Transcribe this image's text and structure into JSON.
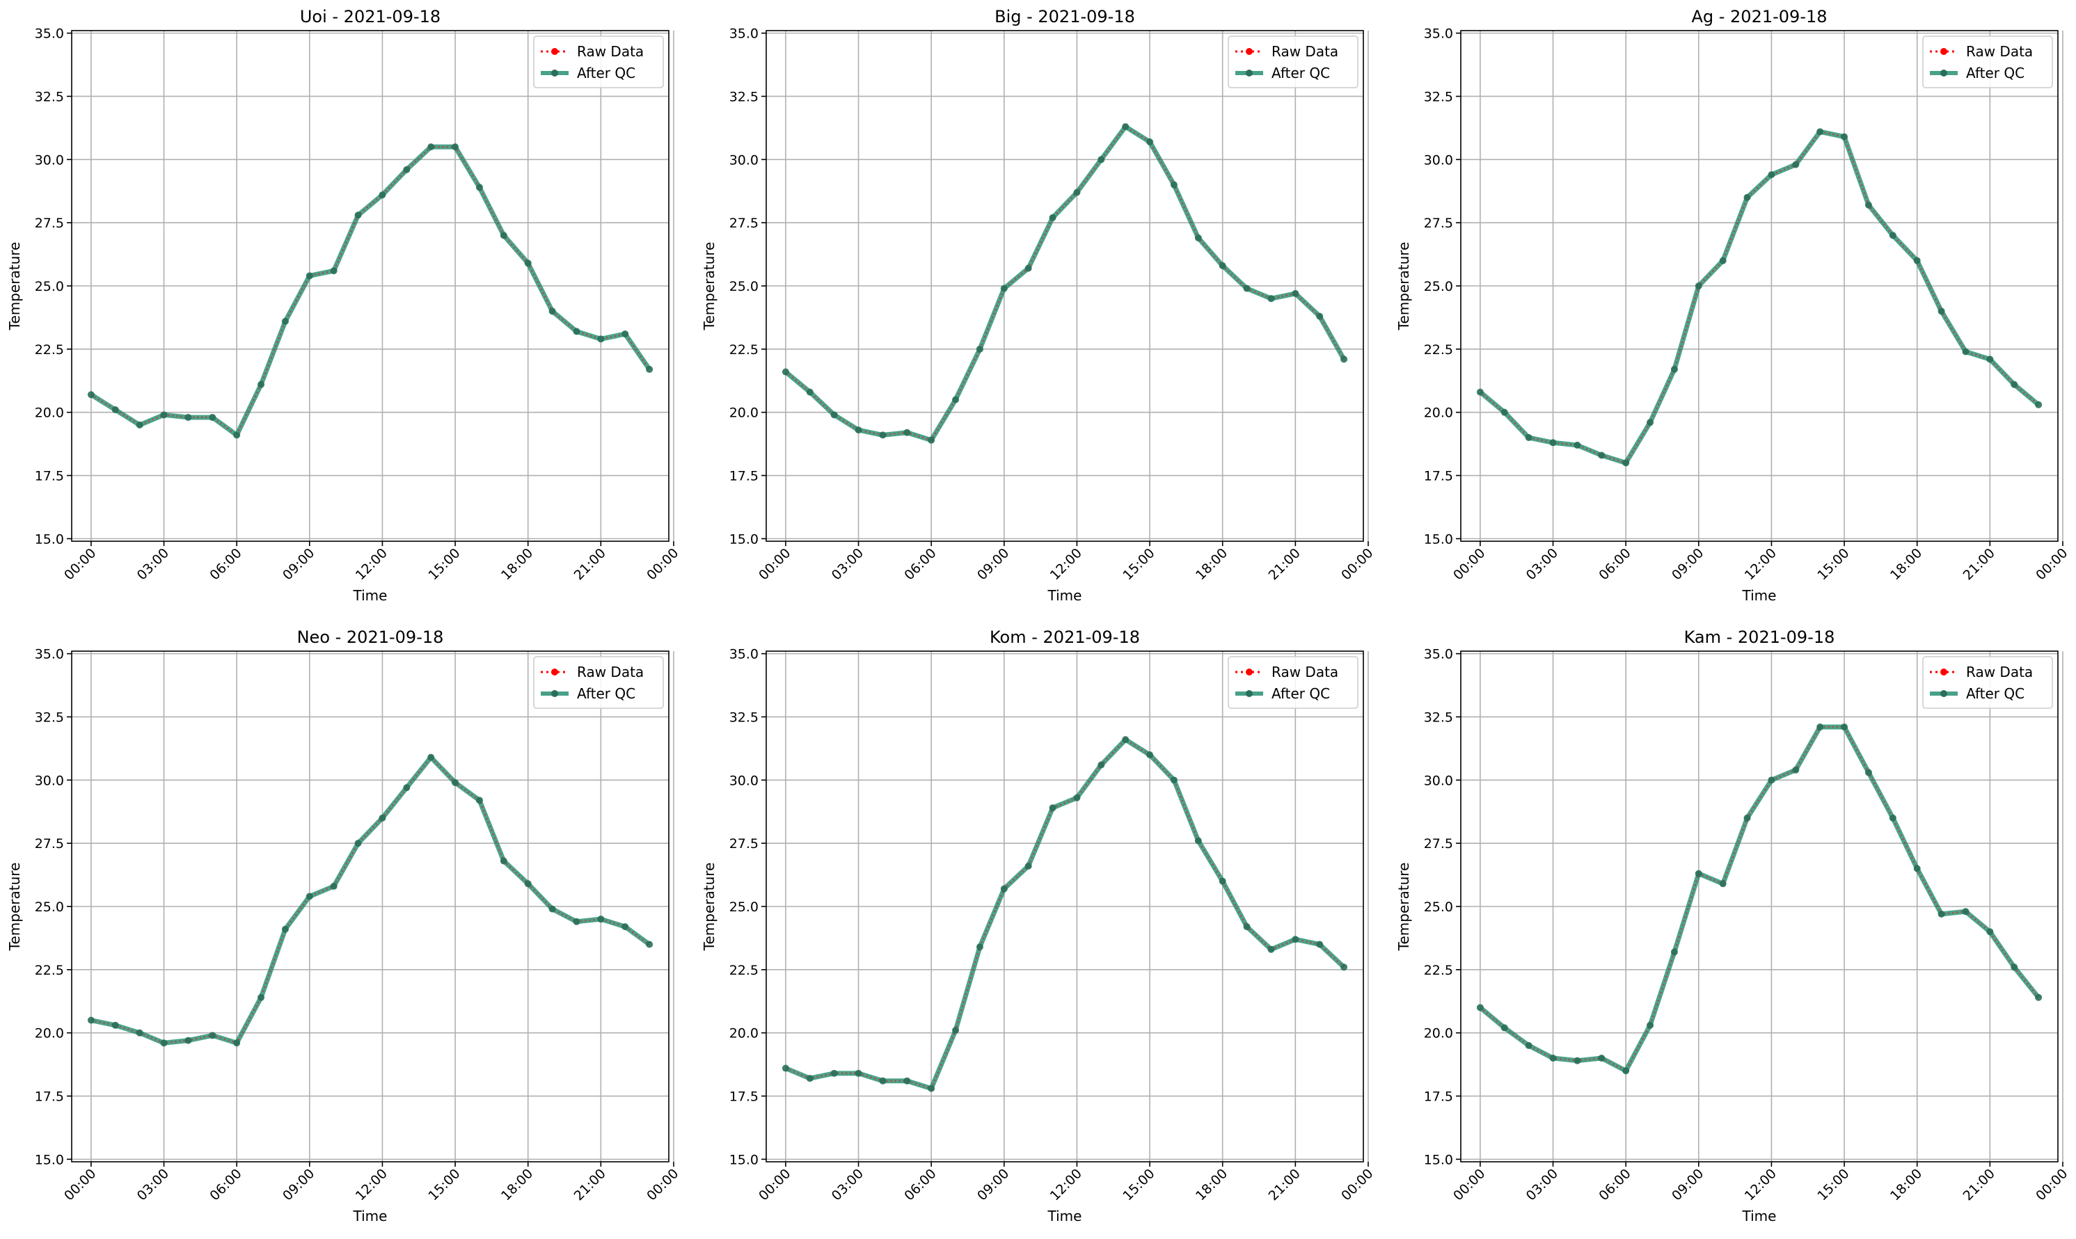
{
  "chart_data": [
    {
      "type": "line",
      "title": "Uoi - 2021-09-18",
      "xlabel": "Time",
      "ylabel": "Temperature",
      "ylim": [
        15.0,
        35.0
      ],
      "yticks": [
        "15.0",
        "17.5",
        "20.0",
        "22.5",
        "25.0",
        "27.5",
        "30.0",
        "32.5",
        "35.0"
      ],
      "xticks": [
        "00:00",
        "03:00",
        "06:00",
        "09:00",
        "12:00",
        "15:00",
        "18:00",
        "21:00",
        "00:00"
      ],
      "x": [
        0,
        1,
        2,
        3,
        4,
        5,
        6,
        7,
        8,
        9,
        10,
        11,
        12,
        13,
        14,
        15,
        16,
        17,
        18,
        19,
        20,
        21,
        22,
        23
      ],
      "grid": true,
      "legend_position": "top-right",
      "series": [
        {
          "name": "Raw Data",
          "color": "#ff0000",
          "style": "dotted",
          "values": [
            20.7,
            20.1,
            19.5,
            19.9,
            19.8,
            19.8,
            19.1,
            21.1,
            23.6,
            25.4,
            25.6,
            27.8,
            28.6,
            29.6,
            30.5,
            30.5,
            28.9,
            27.0,
            25.9,
            24.0,
            23.2,
            22.9,
            23.1,
            21.7
          ]
        },
        {
          "name": "After QC",
          "color": "#1a8a6a",
          "style": "solid",
          "values": [
            20.7,
            20.1,
            19.5,
            19.9,
            19.8,
            19.8,
            19.1,
            21.1,
            23.6,
            25.4,
            25.6,
            27.8,
            28.6,
            29.6,
            30.5,
            30.5,
            28.9,
            27.0,
            25.9,
            24.0,
            23.2,
            22.9,
            23.1,
            21.7
          ]
        }
      ]
    },
    {
      "type": "line",
      "title": "Big - 2021-09-18",
      "xlabel": "Time",
      "ylabel": "Temperature",
      "ylim": [
        15.0,
        35.0
      ],
      "yticks": [
        "15.0",
        "17.5",
        "20.0",
        "22.5",
        "25.0",
        "27.5",
        "30.0",
        "32.5",
        "35.0"
      ],
      "xticks": [
        "00:00",
        "03:00",
        "06:00",
        "09:00",
        "12:00",
        "15:00",
        "18:00",
        "21:00",
        "00:00"
      ],
      "x": [
        0,
        1,
        2,
        3,
        4,
        5,
        6,
        7,
        8,
        9,
        10,
        11,
        12,
        13,
        14,
        15,
        16,
        17,
        18,
        19,
        20,
        21,
        22,
        23
      ],
      "grid": true,
      "legend_position": "top-right",
      "series": [
        {
          "name": "Raw Data",
          "color": "#ff0000",
          "style": "dotted",
          "values": [
            21.6,
            20.8,
            19.9,
            19.3,
            19.1,
            19.2,
            18.9,
            20.5,
            22.5,
            24.9,
            25.7,
            27.7,
            28.7,
            30.0,
            31.3,
            30.7,
            29.0,
            26.9,
            25.8,
            24.9,
            24.5,
            24.7,
            23.8,
            22.1
          ]
        },
        {
          "name": "After QC",
          "color": "#1a8a6a",
          "style": "solid",
          "values": [
            21.6,
            20.8,
            19.9,
            19.3,
            19.1,
            19.2,
            18.9,
            20.5,
            22.5,
            24.9,
            25.7,
            27.7,
            28.7,
            30.0,
            31.3,
            30.7,
            29.0,
            26.9,
            25.8,
            24.9,
            24.5,
            24.7,
            23.8,
            22.1
          ]
        }
      ]
    },
    {
      "type": "line",
      "title": "Ag - 2021-09-18",
      "xlabel": "Time",
      "ylabel": "Temperature",
      "ylim": [
        15.0,
        35.0
      ],
      "yticks": [
        "15.0",
        "17.5",
        "20.0",
        "22.5",
        "25.0",
        "27.5",
        "30.0",
        "32.5",
        "35.0"
      ],
      "xticks": [
        "00:00",
        "03:00",
        "06:00",
        "09:00",
        "12:00",
        "15:00",
        "18:00",
        "21:00",
        "00:00"
      ],
      "x": [
        0,
        1,
        2,
        3,
        4,
        5,
        6,
        7,
        8,
        9,
        10,
        11,
        12,
        13,
        14,
        15,
        16,
        17,
        18,
        19,
        20,
        21,
        22,
        23
      ],
      "grid": true,
      "legend_position": "top-right",
      "series": [
        {
          "name": "Raw Data",
          "color": "#ff0000",
          "style": "dotted",
          "values": [
            20.8,
            20.0,
            19.0,
            18.8,
            18.7,
            18.3,
            18.0,
            19.6,
            21.7,
            25.0,
            26.0,
            28.5,
            29.4,
            29.8,
            31.1,
            30.9,
            28.2,
            27.0,
            26.0,
            24.0,
            22.4,
            22.1,
            21.1,
            20.3
          ]
        },
        {
          "name": "After QC",
          "color": "#1a8a6a",
          "style": "solid",
          "values": [
            20.8,
            20.0,
            19.0,
            18.8,
            18.7,
            18.3,
            18.0,
            19.6,
            21.7,
            25.0,
            26.0,
            28.5,
            29.4,
            29.8,
            31.1,
            30.9,
            28.2,
            27.0,
            26.0,
            24.0,
            22.4,
            22.1,
            21.1,
            20.3
          ]
        }
      ]
    },
    {
      "type": "line",
      "title": "Neo - 2021-09-18",
      "xlabel": "Time",
      "ylabel": "Temperature",
      "ylim": [
        15.0,
        35.0
      ],
      "yticks": [
        "15.0",
        "17.5",
        "20.0",
        "22.5",
        "25.0",
        "27.5",
        "30.0",
        "32.5",
        "35.0"
      ],
      "xticks": [
        "00:00",
        "03:00",
        "06:00",
        "09:00",
        "12:00",
        "15:00",
        "18:00",
        "21:00",
        "00:00"
      ],
      "x": [
        0,
        1,
        2,
        3,
        4,
        5,
        6,
        7,
        8,
        9,
        10,
        11,
        12,
        13,
        14,
        15,
        16,
        17,
        18,
        19,
        20,
        21,
        22,
        23
      ],
      "grid": true,
      "legend_position": "top-right",
      "series": [
        {
          "name": "Raw Data",
          "color": "#ff0000",
          "style": "dotted",
          "values": [
            20.5,
            20.3,
            20.0,
            19.6,
            19.7,
            19.9,
            19.6,
            21.4,
            24.1,
            25.4,
            25.8,
            27.5,
            28.5,
            29.7,
            30.9,
            29.9,
            29.2,
            26.8,
            25.9,
            24.9,
            24.4,
            24.5,
            24.2,
            23.5
          ]
        },
        {
          "name": "After QC",
          "color": "#1a8a6a",
          "style": "solid",
          "values": [
            20.5,
            20.3,
            20.0,
            19.6,
            19.7,
            19.9,
            19.6,
            21.4,
            24.1,
            25.4,
            25.8,
            27.5,
            28.5,
            29.7,
            30.9,
            29.9,
            29.2,
            26.8,
            25.9,
            24.9,
            24.4,
            24.5,
            24.2,
            23.5
          ]
        }
      ]
    },
    {
      "type": "line",
      "title": "Kom - 2021-09-18",
      "xlabel": "Time",
      "ylabel": "Temperature",
      "ylim": [
        15.0,
        35.0
      ],
      "yticks": [
        "15.0",
        "17.5",
        "20.0",
        "22.5",
        "25.0",
        "27.5",
        "30.0",
        "32.5",
        "35.0"
      ],
      "xticks": [
        "00:00",
        "03:00",
        "06:00",
        "09:00",
        "12:00",
        "15:00",
        "18:00",
        "21:00",
        "00:00"
      ],
      "x": [
        0,
        1,
        2,
        3,
        4,
        5,
        6,
        7,
        8,
        9,
        10,
        11,
        12,
        13,
        14,
        15,
        16,
        17,
        18,
        19,
        20,
        21,
        22,
        23
      ],
      "grid": true,
      "legend_position": "top-right",
      "series": [
        {
          "name": "Raw Data",
          "color": "#ff0000",
          "style": "dotted",
          "values": [
            18.6,
            18.2,
            18.4,
            18.4,
            18.1,
            18.1,
            17.8,
            20.1,
            23.4,
            25.7,
            26.6,
            28.9,
            29.3,
            30.6,
            31.6,
            31.0,
            30.0,
            27.6,
            26.0,
            24.2,
            23.3,
            23.7,
            23.5,
            22.6
          ]
        },
        {
          "name": "After QC",
          "color": "#1a8a6a",
          "style": "solid",
          "values": [
            18.6,
            18.2,
            18.4,
            18.4,
            18.1,
            18.1,
            17.8,
            20.1,
            23.4,
            25.7,
            26.6,
            28.9,
            29.3,
            30.6,
            31.6,
            31.0,
            30.0,
            27.6,
            26.0,
            24.2,
            23.3,
            23.7,
            23.5,
            22.6
          ]
        }
      ]
    },
    {
      "type": "line",
      "title": "Kam - 2021-09-18",
      "xlabel": "Time",
      "ylabel": "Temperature",
      "ylim": [
        15.0,
        35.0
      ],
      "yticks": [
        "15.0",
        "17.5",
        "20.0",
        "22.5",
        "25.0",
        "27.5",
        "30.0",
        "32.5",
        "35.0"
      ],
      "xticks": [
        "00:00",
        "03:00",
        "06:00",
        "09:00",
        "12:00",
        "15:00",
        "18:00",
        "21:00",
        "00:00"
      ],
      "x": [
        0,
        1,
        2,
        3,
        4,
        5,
        6,
        7,
        8,
        9,
        10,
        11,
        12,
        13,
        14,
        15,
        16,
        17,
        18,
        19,
        20,
        21,
        22,
        23
      ],
      "grid": true,
      "legend_position": "top-right",
      "series": [
        {
          "name": "Raw Data",
          "color": "#ff0000",
          "style": "dotted",
          "values": [
            21.0,
            20.2,
            19.5,
            19.0,
            18.9,
            19.0,
            18.5,
            20.3,
            23.2,
            26.3,
            25.9,
            28.5,
            30.0,
            30.4,
            32.1,
            32.1,
            30.3,
            28.5,
            26.5,
            24.7,
            24.8,
            24.0,
            22.6,
            21.4
          ]
        },
        {
          "name": "After QC",
          "color": "#1a8a6a",
          "style": "solid",
          "values": [
            21.0,
            20.2,
            19.5,
            19.0,
            18.9,
            19.0,
            18.5,
            20.3,
            23.2,
            26.3,
            25.9,
            28.5,
            30.0,
            30.4,
            32.1,
            32.1,
            30.3,
            28.5,
            26.5,
            24.7,
            24.8,
            24.0,
            22.6,
            21.4
          ]
        }
      ]
    }
  ]
}
